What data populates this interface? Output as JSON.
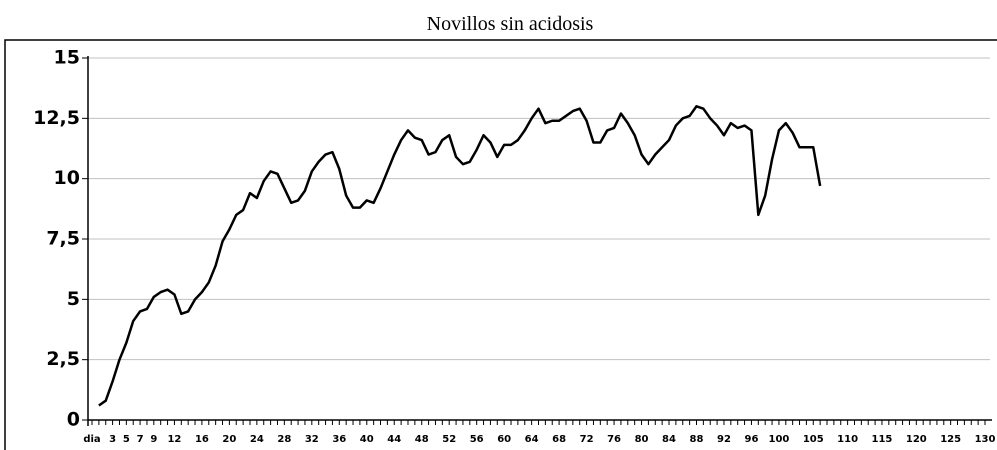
{
  "chart_data": {
    "type": "line",
    "title": "Novillos sin acidosis",
    "categories": [
      "dia",
      null,
      null,
      "3",
      null,
      "5",
      null,
      "7",
      null,
      "9",
      null,
      null,
      "12",
      null,
      null,
      null,
      "16",
      null,
      null,
      null,
      "20",
      null,
      null,
      null,
      "24",
      null,
      null,
      null,
      "28",
      null,
      null,
      null,
      "32",
      null,
      null,
      null,
      "36",
      null,
      null,
      null,
      "40",
      null,
      null,
      null,
      "44",
      null,
      null,
      null,
      "48",
      null,
      null,
      null,
      "52",
      null,
      null,
      null,
      "56",
      null,
      null,
      null,
      "60",
      null,
      null,
      null,
      "64",
      null,
      null,
      null,
      "68",
      null,
      null,
      null,
      "72",
      null,
      null,
      null,
      "76",
      null,
      null,
      null,
      "80",
      null,
      null,
      null,
      "84",
      null,
      null,
      null,
      "88",
      null,
      null,
      null,
      "92",
      null,
      null,
      null,
      "96",
      null,
      null,
      null,
      "100",
      null,
      null,
      null,
      null,
      "105",
      null,
      null,
      null,
      null,
      "110",
      null,
      null,
      null,
      null,
      "115",
      null,
      null,
      null,
      null,
      "120",
      null,
      null,
      null,
      null,
      "125",
      null,
      null,
      null,
      null,
      "130"
    ],
    "series": [
      {
        "name": "Novillos sin acidosis",
        "color": "#000000",
        "values": [
          null,
          0.6,
          0.8,
          1.6,
          2.5,
          3.2,
          4.1,
          4.5,
          4.6,
          5.1,
          5.3,
          5.4,
          5.2,
          4.4,
          4.5,
          5.0,
          5.3,
          5.7,
          6.4,
          7.4,
          7.9,
          8.5,
          8.7,
          9.4,
          9.2,
          9.9,
          10.3,
          10.2,
          9.6,
          9.0,
          9.1,
          9.5,
          10.3,
          10.7,
          11.0,
          11.1,
          10.4,
          9.3,
          8.8,
          8.8,
          9.1,
          9.0,
          9.6,
          10.3,
          11.0,
          11.6,
          12.0,
          11.7,
          11.6,
          11.0,
          11.1,
          11.6,
          11.8,
          10.9,
          10.6,
          10.7,
          11.2,
          11.8,
          11.5,
          10.9,
          11.4,
          11.4,
          11.6,
          12.0,
          12.5,
          12.9,
          12.3,
          12.4,
          12.4,
          12.6,
          12.8,
          12.9,
          12.4,
          11.5,
          11.5,
          12.0,
          12.1,
          12.7,
          12.3,
          11.8,
          11.0,
          10.6,
          11.0,
          11.3,
          11.6,
          12.2,
          12.5,
          12.6,
          13.0,
          12.9,
          12.5,
          12.2,
          11.8,
          12.3,
          12.1,
          12.2,
          12.0,
          8.5,
          9.3,
          10.8,
          12.0,
          12.3,
          11.9,
          11.3,
          11.3,
          11.3,
          9.7,
          null,
          null,
          null,
          null,
          null,
          null,
          null,
          null,
          null,
          null,
          null,
          null,
          null,
          null,
          null,
          null,
          null,
          null,
          null,
          null,
          null,
          null,
          null,
          null
        ]
      }
    ],
    "ylim": [
      0,
      15
    ],
    "yticks": [
      0,
      {
        "value": 2.5,
        "label": "2,5"
      },
      5,
      {
        "value": 7.5,
        "label": "7,5"
      },
      10,
      {
        "value": 12.5,
        "label": "12,5"
      },
      15
    ],
    "grid": true
  }
}
